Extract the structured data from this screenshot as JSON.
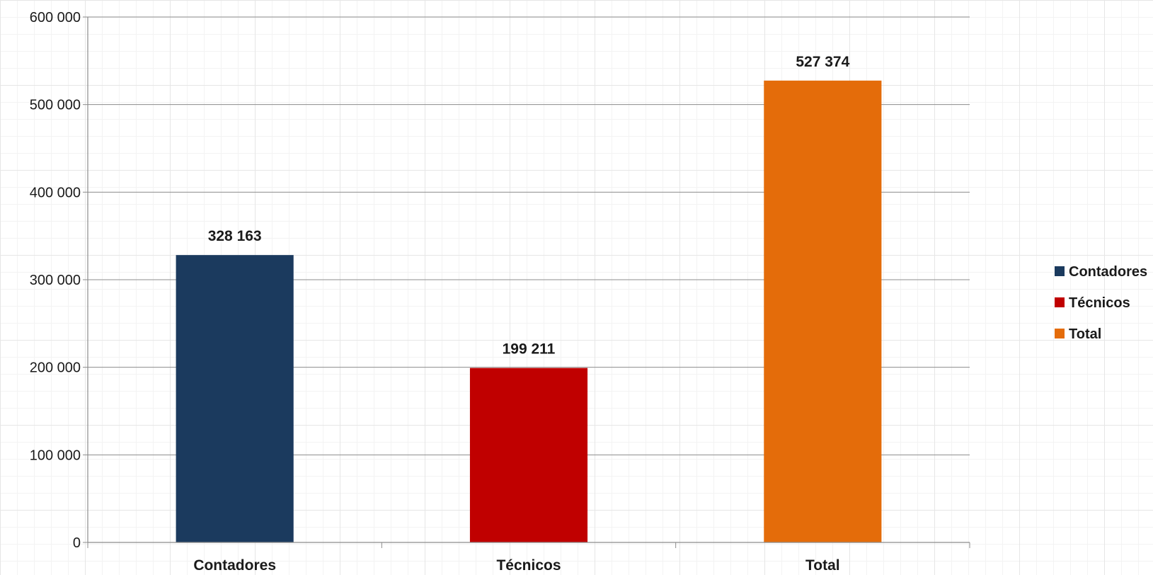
{
  "chart_data": {
    "type": "bar",
    "categories": [
      "Contadores",
      "Técnicos",
      "Total"
    ],
    "values": [
      328163,
      199211,
      527374
    ],
    "data_labels": [
      "328 163",
      "199 211",
      "527 374"
    ],
    "colors": [
      "#1b3a5e",
      "#c00000",
      "#e46c0a"
    ],
    "ylim": [
      0,
      600000
    ],
    "yticks": [
      0,
      100000,
      200000,
      300000,
      400000,
      500000,
      600000
    ],
    "ytick_labels": [
      "0",
      "100 000",
      "200 000",
      "300 000",
      "400 000",
      "500 000",
      "600 000"
    ],
    "grid": true,
    "legend": {
      "placement": "right",
      "entries": [
        "Contadores",
        "Técnicos",
        "Total"
      ]
    }
  }
}
